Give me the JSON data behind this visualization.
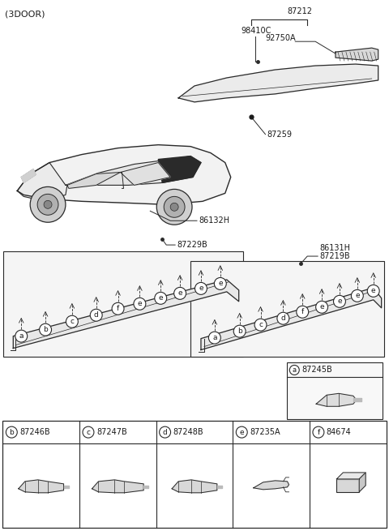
{
  "title": "(3DOOR)",
  "bg_color": "#ffffff",
  "line_color": "#2a2a2a",
  "text_color": "#1a1a1a",
  "fig_width": 4.8,
  "fig_height": 6.55,
  "dpi": 100,
  "bottom_row": [
    {
      "circle": "b",
      "part": "87246B"
    },
    {
      "circle": "c",
      "part": "87247B"
    },
    {
      "circle": "d",
      "part": "87248B"
    },
    {
      "circle": "e",
      "part": "87235A"
    },
    {
      "circle": "f",
      "part": "84674"
    }
  ],
  "box_a_part": "87245B",
  "labels": {
    "top_left": "(3DOOR)",
    "l87212": "87212",
    "l98410C": "98410C",
    "l92750A": "92750A",
    "l87259": "87259",
    "l86132H": "86132H",
    "l87229B": "87229B",
    "l86131H": "86131H",
    "l87219B": "87219B"
  }
}
